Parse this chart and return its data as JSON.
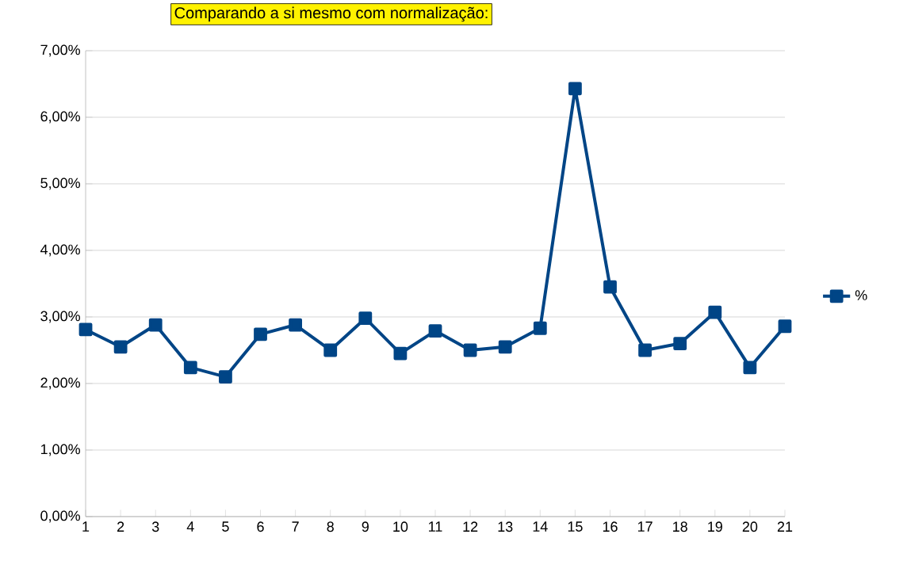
{
  "chart_data": {
    "type": "line",
    "title": "Comparando a si mesmo com normalização:",
    "categories": [
      "1",
      "2",
      "3",
      "4",
      "5",
      "6",
      "7",
      "8",
      "9",
      "10",
      "11",
      "12",
      "13",
      "14",
      "15",
      "16",
      "17",
      "18",
      "19",
      "20",
      "21"
    ],
    "series": [
      {
        "name": "%",
        "color": "#004586",
        "values": [
          2.81,
          2.55,
          2.88,
          2.24,
          2.1,
          2.74,
          2.88,
          2.5,
          2.98,
          2.45,
          2.79,
          2.5,
          2.55,
          2.83,
          6.43,
          3.45,
          2.5,
          2.6,
          3.07,
          2.24,
          2.86
        ]
      }
    ],
    "ylim": [
      0,
      7
    ],
    "yticks": [
      {
        "value": 0,
        "label": "0,00%"
      },
      {
        "value": 1,
        "label": "1,00%"
      },
      {
        "value": 2,
        "label": "2,00%"
      },
      {
        "value": 3,
        "label": "3,00%"
      },
      {
        "value": 4,
        "label": "4,00%"
      },
      {
        "value": 5,
        "label": "5,00%"
      },
      {
        "value": 6,
        "label": "6,00%"
      },
      {
        "value": 7,
        "label": "7,00%"
      }
    ],
    "grid": "y",
    "legend": "right",
    "marker": "square",
    "line_style": "solid"
  }
}
